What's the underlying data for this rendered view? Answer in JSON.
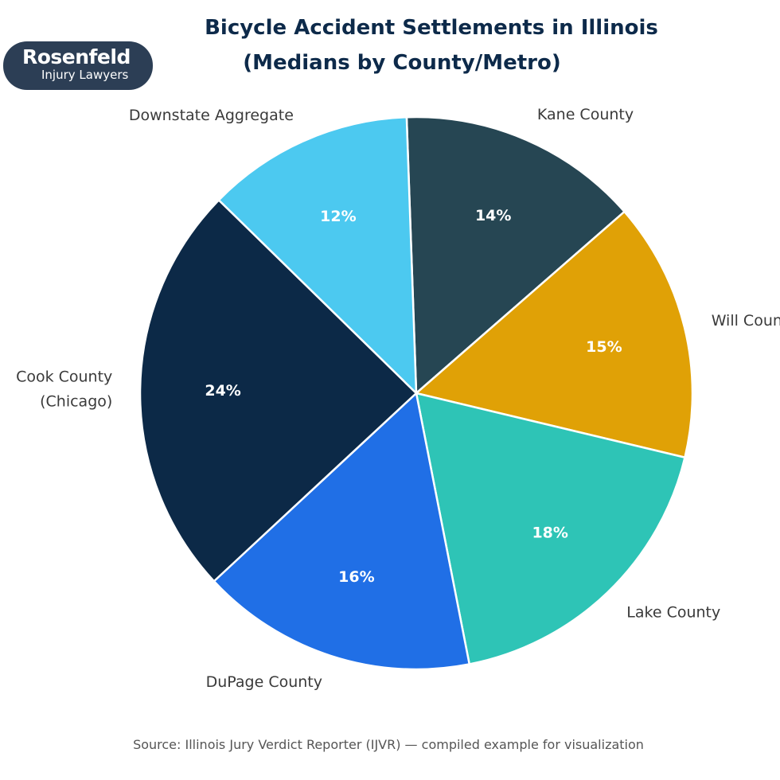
{
  "logo": {
    "name": "Rosenfeld",
    "subtitle": "Injury Lawyers"
  },
  "chart_data": {
    "type": "pie",
    "title": "Bicycle Accident Settlements in Illinois",
    "subtitle": "(Medians by County/Metro)",
    "source": "Source: Illinois Jury Verdict Reporter (IJVR) — compiled example for visualization",
    "start_angle_deg": 92,
    "direction": "clockwise",
    "legend": "none",
    "slices": [
      {
        "label": "Kane County",
        "value": 14,
        "display": "14%",
        "color": "#264653"
      },
      {
        "label": "Will County",
        "value": 15,
        "display": "15%",
        "color": "#e0a106"
      },
      {
        "label": "Lake County",
        "value": 18,
        "display": "18%",
        "color": "#2ec4b6"
      },
      {
        "label": "DuPage County",
        "value": 16,
        "display": "16%",
        "color": "#206fe6"
      },
      {
        "label": "Cook County (Chicago)",
        "label_lines": [
          "Cook County",
          "(Chicago)"
        ],
        "value": 24,
        "display": "24%",
        "color": "#0c2947"
      },
      {
        "label": "Downstate Aggregate",
        "value": 12,
        "display": "12%",
        "color": "#4cc9f0"
      }
    ]
  }
}
